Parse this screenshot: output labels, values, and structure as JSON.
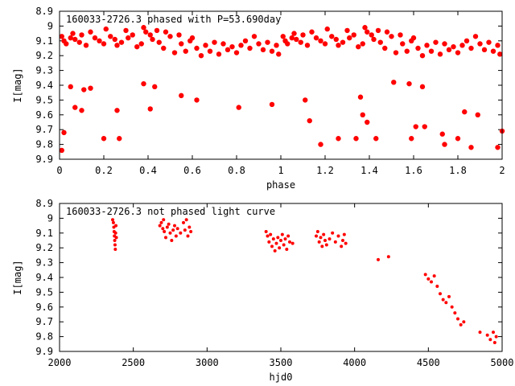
{
  "chart_data": [
    {
      "type": "scatter",
      "title": "160033-2726.3 phased with P=53.690day",
      "xlabel": "phase",
      "ylabel": "I[mag]",
      "xlim": [
        0,
        2
      ],
      "ylim": [
        9.9,
        8.9
      ],
      "y_inverted": true,
      "xticks": [
        "0",
        "0.2",
        "0.4",
        "0.6",
        "0.8",
        "1",
        "1.2",
        "1.4",
        "1.6",
        "1.8",
        "2"
      ],
      "yticks": [
        "8.9",
        "9",
        "9.1",
        "9.2",
        "9.3",
        "9.4",
        "9.5",
        "9.6",
        "9.7",
        "9.8",
        "9.9"
      ],
      "marker": "filled-circle-large",
      "series": [
        {
          "color": "#ff0000",
          "points": [
            [
              0.01,
              9.07
            ],
            [
              0.02,
              9.1
            ],
            [
              0.03,
              9.12
            ],
            [
              0.05,
              9.08
            ],
            [
              0.06,
              9.05
            ],
            [
              0.07,
              9.09
            ],
            [
              0.09,
              9.11
            ],
            [
              0.1,
              9.06
            ],
            [
              0.12,
              9.13
            ],
            [
              0.14,
              9.04
            ],
            [
              0.16,
              9.08
            ],
            [
              0.18,
              9.1
            ],
            [
              0.2,
              9.12
            ],
            [
              0.21,
              9.02
            ],
            [
              0.23,
              9.07
            ],
            [
              0.25,
              9.09
            ],
            [
              0.26,
              9.13
            ],
            [
              0.28,
              9.11
            ],
            [
              0.3,
              9.03
            ],
            [
              0.31,
              9.08
            ],
            [
              0.33,
              9.06
            ],
            [
              0.35,
              9.14
            ],
            [
              0.37,
              9.12
            ],
            [
              0.38,
              9.01
            ],
            [
              0.39,
              9.04
            ],
            [
              0.41,
              9.06
            ],
            [
              0.42,
              9.09
            ],
            [
              0.44,
              9.03
            ],
            [
              0.45,
              9.11
            ],
            [
              0.47,
              9.15
            ],
            [
              0.48,
              9.04
            ],
            [
              0.5,
              9.07
            ],
            [
              0.52,
              9.18
            ],
            [
              0.54,
              9.06
            ],
            [
              0.55,
              9.12
            ],
            [
              0.57,
              9.17
            ],
            [
              0.59,
              9.1
            ],
            [
              0.6,
              9.08
            ],
            [
              0.62,
              9.15
            ],
            [
              0.64,
              9.2
            ],
            [
              0.66,
              9.13
            ],
            [
              0.68,
              9.17
            ],
            [
              0.7,
              9.11
            ],
            [
              0.72,
              9.19
            ],
            [
              0.74,
              9.12
            ],
            [
              0.76,
              9.16
            ],
            [
              0.78,
              9.14
            ],
            [
              0.8,
              9.18
            ],
            [
              0.82,
              9.13
            ],
            [
              0.84,
              9.1
            ],
            [
              0.86,
              9.15
            ],
            [
              0.88,
              9.07
            ],
            [
              0.9,
              9.12
            ],
            [
              0.92,
              9.16
            ],
            [
              0.94,
              9.11
            ],
            [
              0.96,
              9.17
            ],
            [
              0.98,
              9.13
            ],
            [
              0.99,
              9.19
            ],
            [
              1.01,
              9.07
            ],
            [
              1.02,
              9.1
            ],
            [
              1.03,
              9.12
            ],
            [
              1.05,
              9.08
            ],
            [
              1.06,
              9.05
            ],
            [
              1.07,
              9.09
            ],
            [
              1.09,
              9.11
            ],
            [
              1.1,
              9.06
            ],
            [
              1.12,
              9.13
            ],
            [
              1.14,
              9.04
            ],
            [
              1.16,
              9.08
            ],
            [
              1.18,
              9.1
            ],
            [
              1.2,
              9.12
            ],
            [
              1.21,
              9.02
            ],
            [
              1.23,
              9.07
            ],
            [
              1.25,
              9.09
            ],
            [
              1.26,
              9.13
            ],
            [
              1.28,
              9.11
            ],
            [
              1.3,
              9.03
            ],
            [
              1.31,
              9.08
            ],
            [
              1.33,
              9.06
            ],
            [
              1.35,
              9.14
            ],
            [
              1.37,
              9.12
            ],
            [
              1.38,
              9.01
            ],
            [
              1.39,
              9.04
            ],
            [
              1.41,
              9.06
            ],
            [
              1.42,
              9.09
            ],
            [
              1.44,
              9.03
            ],
            [
              1.45,
              9.11
            ],
            [
              1.47,
              9.15
            ],
            [
              1.48,
              9.04
            ],
            [
              1.5,
              9.07
            ],
            [
              1.52,
              9.18
            ],
            [
              1.54,
              9.06
            ],
            [
              1.55,
              9.12
            ],
            [
              1.57,
              9.17
            ],
            [
              1.59,
              9.1
            ],
            [
              1.6,
              9.08
            ],
            [
              1.62,
              9.15
            ],
            [
              1.64,
              9.2
            ],
            [
              1.66,
              9.13
            ],
            [
              1.68,
              9.17
            ],
            [
              1.7,
              9.11
            ],
            [
              1.72,
              9.19
            ],
            [
              1.74,
              9.12
            ],
            [
              1.76,
              9.16
            ],
            [
              1.78,
              9.14
            ],
            [
              1.8,
              9.18
            ],
            [
              1.82,
              9.13
            ],
            [
              1.84,
              9.1
            ],
            [
              1.86,
              9.15
            ],
            [
              1.88,
              9.07
            ],
            [
              1.9,
              9.12
            ],
            [
              1.92,
              9.16
            ],
            [
              1.94,
              9.11
            ],
            [
              1.96,
              9.17
            ],
            [
              1.98,
              9.13
            ],
            [
              1.99,
              9.19
            ],
            [
              0.01,
              9.84
            ],
            [
              0.02,
              9.72
            ],
            [
              0.05,
              9.41
            ],
            [
              0.07,
              9.55
            ],
            [
              0.1,
              9.57
            ],
            [
              0.11,
              9.43
            ],
            [
              0.14,
              9.42
            ],
            [
              0.2,
              9.76
            ],
            [
              0.26,
              9.57
            ],
            [
              0.27,
              9.76
            ],
            [
              0.38,
              9.39
            ],
            [
              0.41,
              9.56
            ],
            [
              0.43,
              9.41
            ],
            [
              0.55,
              9.47
            ],
            [
              0.62,
              9.5
            ],
            [
              0.81,
              9.55
            ],
            [
              0.96,
              9.53
            ],
            [
              1.11,
              9.5
            ],
            [
              1.13,
              9.64
            ],
            [
              1.18,
              9.8
            ],
            [
              1.26,
              9.76
            ],
            [
              1.34,
              9.76
            ],
            [
              1.36,
              9.48
            ],
            [
              1.37,
              9.6
            ],
            [
              1.39,
              9.65
            ],
            [
              1.43,
              9.76
            ],
            [
              1.51,
              9.38
            ],
            [
              1.58,
              9.39
            ],
            [
              1.59,
              9.76
            ],
            [
              1.61,
              9.68
            ],
            [
              1.64,
              9.41
            ],
            [
              1.65,
              9.68
            ],
            [
              1.73,
              9.73
            ],
            [
              1.74,
              9.8
            ],
            [
              1.8,
              9.76
            ],
            [
              1.83,
              9.58
            ],
            [
              1.86,
              9.82
            ],
            [
              1.89,
              9.6
            ],
            [
              1.98,
              9.82
            ],
            [
              2.0,
              9.71
            ]
          ]
        }
      ]
    },
    {
      "type": "scatter",
      "title": "160033-2726.3 not phased light curve",
      "xlabel": "hjd0",
      "ylabel": "I[mag]",
      "xlim": [
        2000,
        5000
      ],
      "ylim": [
        9.9,
        8.9
      ],
      "y_inverted": true,
      "xticks": [
        "2000",
        "2500",
        "3000",
        "3500",
        "4000",
        "4500",
        "5000"
      ],
      "yticks": [
        "8.9",
        "9",
        "9.1",
        "9.2",
        "9.3",
        "9.4",
        "9.5",
        "9.6",
        "9.7",
        "9.8",
        "9.9"
      ],
      "marker": "filled-circle-small",
      "series": [
        {
          "color": "#ff0000",
          "points": [
            [
              2360,
              9.01
            ],
            [
              2365,
              9.03
            ],
            [
              2368,
              9.06
            ],
            [
              2370,
              9.09
            ],
            [
              2372,
              9.12
            ],
            [
              2374,
              9.15
            ],
            [
              2376,
              9.18
            ],
            [
              2378,
              9.21
            ],
            [
              2380,
              9.1
            ],
            [
              2382,
              9.05
            ],
            [
              2385,
              9.13
            ],
            [
              2680,
              9.05
            ],
            [
              2690,
              9.03
            ],
            [
              2700,
              9.07
            ],
            [
              2705,
              9.01
            ],
            [
              2710,
              9.09
            ],
            [
              2720,
              9.13
            ],
            [
              2730,
              9.06
            ],
            [
              2740,
              9.04
            ],
            [
              2750,
              9.1
            ],
            [
              2760,
              9.15
            ],
            [
              2770,
              9.08
            ],
            [
              2780,
              9.05
            ],
            [
              2790,
              9.12
            ],
            [
              2800,
              9.07
            ],
            [
              2820,
              9.1
            ],
            [
              2840,
              9.03
            ],
            [
              2850,
              9.08
            ],
            [
              2860,
              9.01
            ],
            [
              2870,
              9.12
            ],
            [
              2880,
              9.06
            ],
            [
              2890,
              9.09
            ],
            [
              3400,
              9.09
            ],
            [
              3410,
              9.12
            ],
            [
              3420,
              9.16
            ],
            [
              3430,
              9.11
            ],
            [
              3440,
              9.19
            ],
            [
              3450,
              9.14
            ],
            [
              3460,
              9.22
            ],
            [
              3470,
              9.17
            ],
            [
              3480,
              9.13
            ],
            [
              3490,
              9.2
            ],
            [
              3500,
              9.15
            ],
            [
              3510,
              9.11
            ],
            [
              3520,
              9.18
            ],
            [
              3530,
              9.14
            ],
            [
              3540,
              9.21
            ],
            [
              3550,
              9.12
            ],
            [
              3560,
              9.16
            ],
            [
              3580,
              9.17
            ],
            [
              3740,
              9.12
            ],
            [
              3750,
              9.09
            ],
            [
              3760,
              9.16
            ],
            [
              3770,
              9.13
            ],
            [
              3780,
              9.19
            ],
            [
              3790,
              9.11
            ],
            [
              3800,
              9.15
            ],
            [
              3810,
              9.18
            ],
            [
              3830,
              9.14
            ],
            [
              3850,
              9.1
            ],
            [
              3870,
              9.16
            ],
            [
              3890,
              9.12
            ],
            [
              3910,
              9.19
            ],
            [
              3920,
              9.15
            ],
            [
              3930,
              9.11
            ],
            [
              3940,
              9.17
            ],
            [
              4160,
              9.28
            ],
            [
              4230,
              9.26
            ],
            [
              4480,
              9.38
            ],
            [
              4500,
              9.41
            ],
            [
              4520,
              9.43
            ],
            [
              4540,
              9.39
            ],
            [
              4560,
              9.46
            ],
            [
              4580,
              9.51
            ],
            [
              4600,
              9.55
            ],
            [
              4620,
              9.57
            ],
            [
              4640,
              9.53
            ],
            [
              4660,
              9.6
            ],
            [
              4680,
              9.64
            ],
            [
              4700,
              9.68
            ],
            [
              4720,
              9.72
            ],
            [
              4740,
              9.7
            ],
            [
              4850,
              9.77
            ],
            [
              4900,
              9.79
            ],
            [
              4920,
              9.82
            ],
            [
              4940,
              9.77
            ],
            [
              4950,
              9.84
            ],
            [
              4960,
              9.8
            ]
          ]
        }
      ]
    }
  ]
}
